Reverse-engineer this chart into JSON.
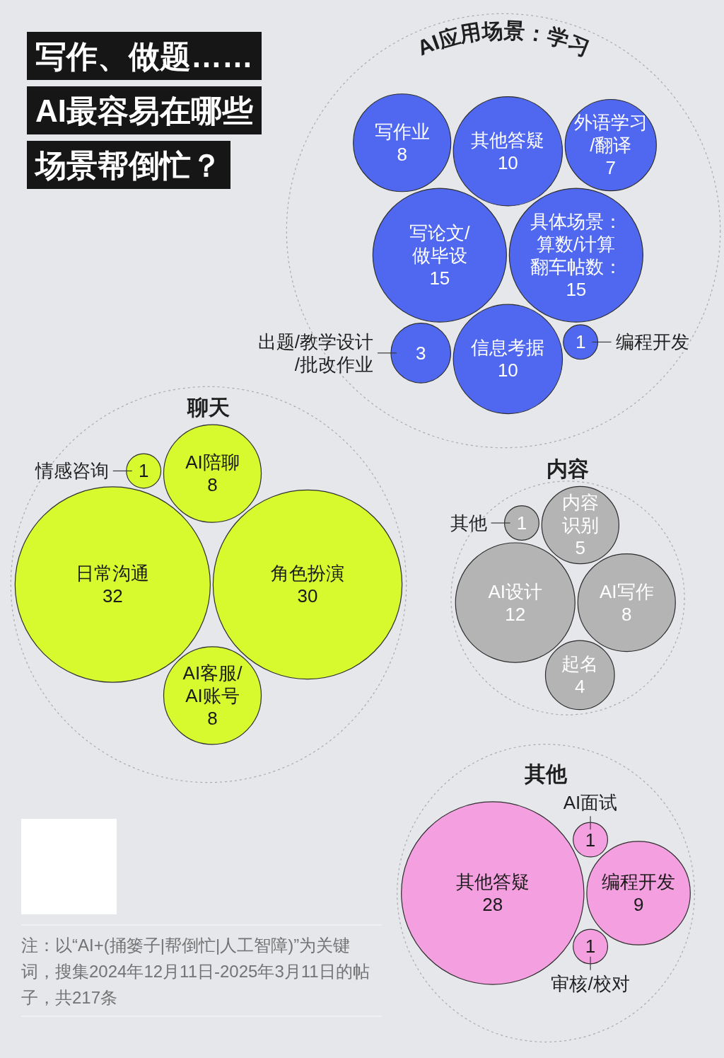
{
  "chart_data": [
    {
      "type": "other",
      "title": "写作、做题……AI最容易在哪些场景帮倒忙？",
      "annotations": [
        "注：以“AI+(捅篓子|帮倒忙|人工智障)”为关键词，搜集2024年12月11日-2025年3月11日的帖子，共217条"
      ]
    },
    {
      "type": "other",
      "title": "AI应用场景：学习",
      "categories": [
        "写论文/做毕设",
        "具体场景：算数/计算",
        "其他答疑",
        "信息考据",
        "写作业",
        "外语学习/翻译",
        "出题/教学设计/批改作业",
        "编程开发"
      ],
      "values": [
        15,
        15,
        10,
        10,
        8,
        7,
        3,
        1
      ],
      "value_labels": [
        "15",
        "翻车帖数：15",
        "10",
        "10",
        "8",
        "7",
        "3",
        "1"
      ],
      "color": "#5068f0"
    },
    {
      "type": "other",
      "title": "聊天",
      "categories": [
        "日常沟通",
        "角色扮演",
        "AI陪聊",
        "AI客服/AI账号",
        "情感咨询"
      ],
      "values": [
        32,
        30,
        8,
        8,
        1
      ],
      "data_labels": true,
      "color": "#d6fa2e"
    },
    {
      "type": "other",
      "title": "内容",
      "categories": [
        "AI设计",
        "AI写作",
        "内容识别",
        "起名",
        "其他"
      ],
      "values": [
        12,
        8,
        5,
        4,
        1
      ],
      "data_labels": true,
      "color": "#b4b4b4"
    },
    {
      "type": "other",
      "title": "其他",
      "categories": [
        "其他答疑",
        "编程开发",
        "AI面试",
        "审核/校对"
      ],
      "values": [
        28,
        9,
        1,
        1
      ],
      "data_labels": true,
      "color": "#f4a0e0"
    }
  ]
}
